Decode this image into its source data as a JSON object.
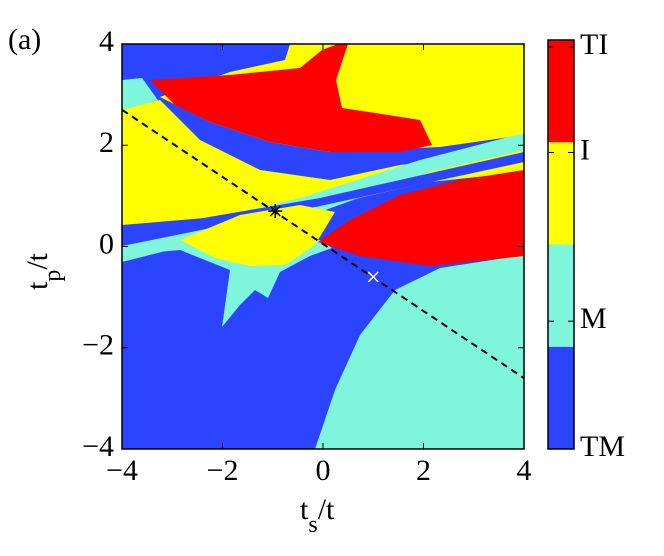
{
  "chart_data": {
    "type": "phase-map",
    "panel_label": "(a)",
    "x_label": [
      "t",
      "s",
      "/t"
    ],
    "y_label": [
      "t",
      "p",
      "/t"
    ],
    "xlim": [
      -4,
      4
    ],
    "ylim": [
      -4,
      4
    ],
    "xticks": [
      {
        "value": -4,
        "label": "−4"
      },
      {
        "value": -2,
        "label": "−2"
      },
      0,
      2,
      4
    ],
    "yticks": [
      {
        "value": -4,
        "label": "−4"
      },
      {
        "value": -2,
        "label": "−2"
      },
      0,
      2,
      4
    ],
    "phase_colors": [
      "#2a44ff",
      "#7ff5dc",
      "#ffff00",
      "#ff0000"
    ],
    "colorbar": {
      "clim": [
        0,
        4
      ],
      "ticks": [
        {
          "value": 0,
          "label": "TM"
        },
        {
          "value": 1.25,
          "label": "M"
        },
        {
          "value": 2.9,
          "label": "I"
        },
        {
          "value": 3.93,
          "label": "TI"
        }
      ]
    },
    "dashed_line": {
      "x": [
        -4,
        4
      ],
      "y": [
        2.7,
        -2.6
      ],
      "color": "#000000"
    },
    "points": [
      {
        "x": -0.95,
        "y": 0.7,
        "symbol": "star",
        "color": "#000000"
      },
      {
        "x": 1,
        "y": -0.6,
        "symbol": "x",
        "color": "#ffffff"
      }
    ]
  }
}
